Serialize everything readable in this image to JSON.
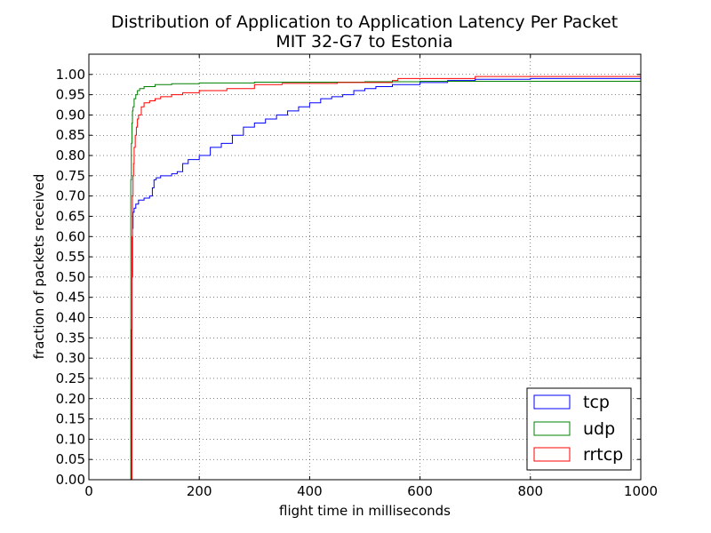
{
  "chart_data": {
    "type": "line",
    "title": "Distribution of Application to Application Latency Per Packet",
    "subtitle": "MIT 32-G7 to Estonia",
    "xlabel": "flight time in milliseconds",
    "ylabel": "fraction of packets received",
    "xlim": [
      0,
      1000
    ],
    "ylim": [
      0,
      1.05
    ],
    "xticks": [
      0,
      200,
      400,
      600,
      800,
      1000
    ],
    "xtick_labels": [
      "0",
      "200",
      "400",
      "600",
      "800",
      "1000"
    ],
    "yticks": [
      0,
      0.05,
      0.1,
      0.15,
      0.2,
      0.25,
      0.3,
      0.35,
      0.4,
      0.45,
      0.5,
      0.55,
      0.6,
      0.65,
      0.7,
      0.75,
      0.8,
      0.85,
      0.9,
      0.95,
      1.0
    ],
    "ytick_labels": [
      "0.00",
      "0.05",
      "0.10",
      "0.15",
      "0.20",
      "0.25",
      "0.30",
      "0.35",
      "0.40",
      "0.45",
      "0.50",
      "0.55",
      "0.60",
      "0.65",
      "0.70",
      "0.75",
      "0.80",
      "0.85",
      "0.90",
      "0.95",
      "1.00"
    ],
    "grid": true,
    "legend_position": "bottom-right",
    "series": [
      {
        "name": "tcp",
        "color": "#0000ff",
        "x": [
          77,
          77,
          78,
          79,
          80,
          82,
          85,
          90,
          100,
          110,
          115,
          118,
          122,
          130,
          150,
          160,
          170,
          180,
          200,
          220,
          240,
          260,
          280,
          300,
          320,
          340,
          360,
          380,
          400,
          420,
          440,
          460,
          480,
          500,
          520,
          550,
          600,
          650,
          700,
          800,
          900,
          1000
        ],
        "y": [
          0.0,
          0.37,
          0.5,
          0.62,
          0.66,
          0.67,
          0.68,
          0.69,
          0.695,
          0.7,
          0.72,
          0.74,
          0.745,
          0.75,
          0.755,
          0.76,
          0.78,
          0.79,
          0.8,
          0.82,
          0.83,
          0.85,
          0.87,
          0.88,
          0.89,
          0.9,
          0.91,
          0.92,
          0.93,
          0.94,
          0.945,
          0.95,
          0.96,
          0.965,
          0.97,
          0.975,
          0.98,
          0.985,
          0.988,
          0.99,
          0.99,
          0.99
        ]
      },
      {
        "name": "udp",
        "color": "#008000",
        "x": [
          76,
          76,
          77,
          78,
          79,
          80,
          82,
          85,
          88,
          92,
          100,
          120,
          150,
          200,
          300,
          500,
          600,
          700,
          800,
          1000
        ],
        "y": [
          0.0,
          0.74,
          0.83,
          0.88,
          0.91,
          0.92,
          0.94,
          0.95,
          0.96,
          0.965,
          0.97,
          0.975,
          0.977,
          0.979,
          0.981,
          0.982,
          0.983,
          0.983,
          0.983,
          0.983
        ]
      },
      {
        "name": "rrtcp",
        "color": "#ff0000",
        "x": [
          78,
          78,
          79,
          80,
          81,
          82,
          84,
          86,
          88,
          90,
          95,
          100,
          110,
          120,
          130,
          150,
          170,
          200,
          250,
          300,
          350,
          450,
          550,
          560,
          700,
          1000
        ],
        "y": [
          0.0,
          0.6,
          0.7,
          0.75,
          0.78,
          0.82,
          0.85,
          0.87,
          0.89,
          0.9,
          0.92,
          0.93,
          0.935,
          0.94,
          0.945,
          0.95,
          0.955,
          0.96,
          0.965,
          0.975,
          0.978,
          0.98,
          0.985,
          0.99,
          0.995,
          0.995
        ]
      }
    ]
  }
}
